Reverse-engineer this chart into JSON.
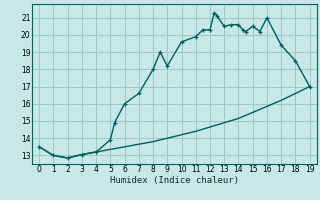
{
  "title": "",
  "xlabel": "Humidex (Indice chaleur)",
  "background_color": "#c8e8e8",
  "grid_color": "#a0c8c8",
  "line_color": "#006060",
  "xlim": [
    -0.5,
    19.5
  ],
  "ylim": [
    12.5,
    21.8
  ],
  "xticks": [
    0,
    1,
    2,
    3,
    4,
    5,
    6,
    7,
    8,
    9,
    10,
    11,
    12,
    13,
    14,
    15,
    16,
    17,
    18,
    19
  ],
  "yticks": [
    13,
    14,
    15,
    16,
    17,
    18,
    19,
    20,
    21
  ],
  "curve1_x": [
    0,
    1,
    2,
    3,
    4,
    5,
    6,
    7,
    8,
    9,
    10,
    11,
    12,
    13,
    14,
    15,
    16,
    17,
    18,
    19
  ],
  "curve1_y": [
    13.5,
    13.0,
    12.85,
    13.05,
    13.2,
    13.35,
    13.5,
    13.65,
    13.8,
    14.0,
    14.2,
    14.4,
    14.65,
    14.9,
    15.15,
    15.5,
    15.85,
    16.2,
    16.6,
    17.0
  ],
  "curve2_x": [
    0,
    1,
    2,
    3,
    4,
    5,
    5.3,
    6,
    7,
    8,
    8.5,
    9,
    10,
    11,
    11.5,
    12,
    12.3,
    12.5,
    13,
    13.5,
    14,
    14.3,
    14.5,
    15,
    15.5,
    16,
    17,
    18,
    19
  ],
  "curve2_y": [
    13.5,
    13.0,
    12.85,
    13.05,
    13.2,
    13.9,
    14.9,
    16.0,
    16.6,
    18.0,
    19.0,
    18.2,
    19.6,
    19.9,
    20.3,
    20.3,
    21.3,
    21.1,
    20.5,
    20.6,
    20.6,
    20.3,
    20.2,
    20.5,
    20.2,
    21.0,
    19.4,
    18.5,
    17.0
  ]
}
